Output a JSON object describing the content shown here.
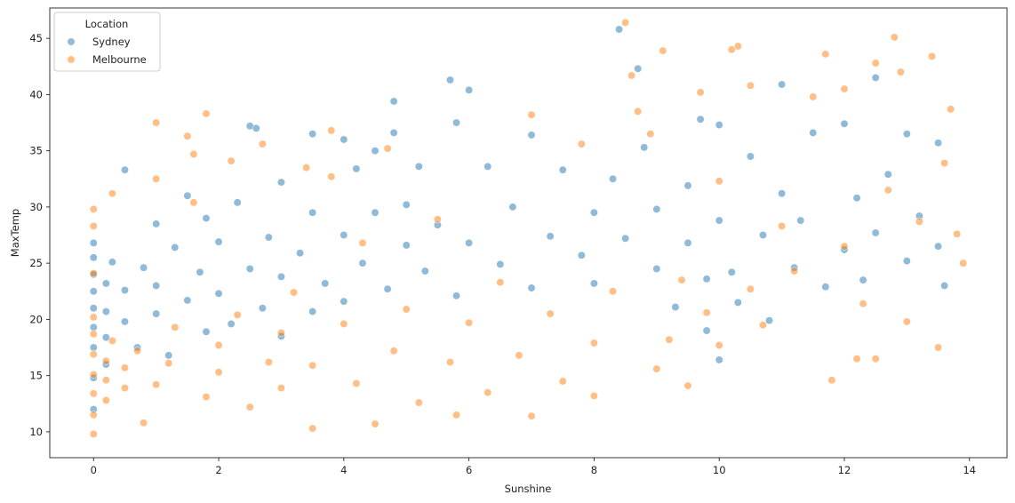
{
  "chart_data": {
    "type": "scatter",
    "xlabel": "Sunshine",
    "ylabel": "MaxTemp",
    "xlim": [
      -0.7,
      14.6
    ],
    "ylim": [
      7.7,
      47.7
    ],
    "xticks": [
      0,
      2,
      4,
      6,
      8,
      10,
      12,
      14
    ],
    "yticks": [
      10,
      15,
      20,
      25,
      30,
      35,
      40,
      45
    ],
    "grid": false,
    "legend": {
      "title": "Location",
      "placement": "top-left"
    },
    "series": [
      {
        "name": "Sydney",
        "color": "#1f77b4",
        "points": [
          [
            0,
            12
          ],
          [
            0,
            14.8
          ],
          [
            0,
            17.5
          ],
          [
            0,
            19.3
          ],
          [
            0,
            21
          ],
          [
            0,
            22.5
          ],
          [
            0,
            24
          ],
          [
            0,
            25.5
          ],
          [
            0,
            26.8
          ],
          [
            0.2,
            16
          ],
          [
            0.2,
            18.4
          ],
          [
            0.2,
            20.7
          ],
          [
            0.2,
            23.2
          ],
          [
            0.3,
            25.1
          ],
          [
            0.5,
            19.8
          ],
          [
            0.5,
            22.6
          ],
          [
            0.5,
            33.3
          ],
          [
            0.7,
            17.5
          ],
          [
            0.8,
            24.6
          ],
          [
            1.0,
            20.5
          ],
          [
            1.0,
            23
          ],
          [
            1.0,
            28.5
          ],
          [
            1.2,
            16.8
          ],
          [
            1.3,
            26.4
          ],
          [
            1.5,
            21.7
          ],
          [
            1.5,
            31
          ],
          [
            1.7,
            24.2
          ],
          [
            1.8,
            18.9
          ],
          [
            1.8,
            29
          ],
          [
            2.0,
            22.3
          ],
          [
            2.0,
            26.9
          ],
          [
            2.2,
            19.6
          ],
          [
            2.3,
            30.4
          ],
          [
            2.5,
            24.5
          ],
          [
            2.5,
            37.2
          ],
          [
            2.6,
            37
          ],
          [
            2.7,
            21
          ],
          [
            2.8,
            27.3
          ],
          [
            3.0,
            18.5
          ],
          [
            3.0,
            23.8
          ],
          [
            3.0,
            32.2
          ],
          [
            3.3,
            25.9
          ],
          [
            3.5,
            20.7
          ],
          [
            3.5,
            29.5
          ],
          [
            3.5,
            36.5
          ],
          [
            3.7,
            23.2
          ],
          [
            4.0,
            27.5
          ],
          [
            4.0,
            36
          ],
          [
            4.0,
            21.6
          ],
          [
            4.2,
            33.4
          ],
          [
            4.3,
            25
          ],
          [
            4.5,
            29.5
          ],
          [
            4.5,
            35
          ],
          [
            4.7,
            22.7
          ],
          [
            4.8,
            39.4
          ],
          [
            4.8,
            36.6
          ],
          [
            5.0,
            26.6
          ],
          [
            5.0,
            30.2
          ],
          [
            5.2,
            33.6
          ],
          [
            5.3,
            24.3
          ],
          [
            5.5,
            28.4
          ],
          [
            5.7,
            41.3
          ],
          [
            5.8,
            37.5
          ],
          [
            5.8,
            22.1
          ],
          [
            6.0,
            40.4
          ],
          [
            6.0,
            26.8
          ],
          [
            6.3,
            33.6
          ],
          [
            6.5,
            24.9
          ],
          [
            6.7,
            30
          ],
          [
            7.0,
            36.4
          ],
          [
            7.0,
            22.8
          ],
          [
            7.3,
            27.4
          ],
          [
            7.5,
            33.3
          ],
          [
            7.8,
            25.7
          ],
          [
            8.0,
            29.5
          ],
          [
            8.0,
            23.2
          ],
          [
            8.3,
            32.5
          ],
          [
            8.4,
            45.8
          ],
          [
            8.5,
            27.2
          ],
          [
            8.7,
            42.3
          ],
          [
            8.8,
            35.3
          ],
          [
            9.0,
            24.5
          ],
          [
            9.0,
            29.8
          ],
          [
            9.3,
            21.1
          ],
          [
            9.5,
            31.9
          ],
          [
            9.5,
            26.8
          ],
          [
            9.7,
            37.8
          ],
          [
            9.8,
            19
          ],
          [
            9.8,
            23.6
          ],
          [
            10.0,
            37.3
          ],
          [
            10.0,
            28.8
          ],
          [
            10.0,
            16.4
          ],
          [
            10.2,
            24.2
          ],
          [
            10.3,
            21.5
          ],
          [
            10.5,
            34.5
          ],
          [
            10.7,
            27.5
          ],
          [
            10.8,
            19.9
          ],
          [
            11.0,
            31.2
          ],
          [
            11.0,
            40.9
          ],
          [
            11.2,
            24.6
          ],
          [
            11.3,
            28.8
          ],
          [
            11.5,
            36.6
          ],
          [
            11.7,
            22.9
          ],
          [
            12.0,
            26.2
          ],
          [
            12.0,
            37.4
          ],
          [
            12.2,
            30.8
          ],
          [
            12.3,
            23.5
          ],
          [
            12.5,
            41.5
          ],
          [
            12.5,
            27.7
          ],
          [
            12.7,
            32.9
          ],
          [
            13.0,
            25.2
          ],
          [
            13.0,
            36.5
          ],
          [
            13.2,
            29.2
          ],
          [
            13.5,
            26.5
          ],
          [
            13.5,
            35.7
          ],
          [
            13.6,
            23
          ]
        ]
      },
      {
        "name": "Melbourne",
        "color": "#ff7f0e",
        "points": [
          [
            0,
            9.8
          ],
          [
            0,
            11.5
          ],
          [
            0,
            13.4
          ],
          [
            0,
            15.1
          ],
          [
            0,
            16.9
          ],
          [
            0,
            18.7
          ],
          [
            0,
            20.2
          ],
          [
            0,
            24.1
          ],
          [
            0,
            28.3
          ],
          [
            0,
            29.8
          ],
          [
            0.2,
            12.8
          ],
          [
            0.2,
            14.6
          ],
          [
            0.2,
            16.3
          ],
          [
            0.3,
            18.1
          ],
          [
            0.3,
            31.2
          ],
          [
            0.5,
            13.9
          ],
          [
            0.5,
            15.7
          ],
          [
            0.7,
            17.2
          ],
          [
            0.8,
            10.8
          ],
          [
            1.0,
            37.5
          ],
          [
            1.0,
            32.5
          ],
          [
            1.0,
            14.2
          ],
          [
            1.2,
            16.1
          ],
          [
            1.3,
            19.3
          ],
          [
            1.5,
            36.3
          ],
          [
            1.6,
            34.7
          ],
          [
            1.6,
            30.4
          ],
          [
            1.8,
            38.3
          ],
          [
            1.8,
            13.1
          ],
          [
            2.0,
            15.3
          ],
          [
            2.0,
            17.7
          ],
          [
            2.2,
            34.1
          ],
          [
            2.3,
            20.4
          ],
          [
            2.5,
            12.2
          ],
          [
            2.7,
            35.6
          ],
          [
            2.8,
            16.2
          ],
          [
            3.0,
            18.8
          ],
          [
            3.0,
            13.9
          ],
          [
            3.2,
            22.4
          ],
          [
            3.4,
            33.5
          ],
          [
            3.5,
            10.3
          ],
          [
            3.5,
            15.9
          ],
          [
            3.8,
            36.8
          ],
          [
            3.8,
            32.7
          ],
          [
            4.0,
            19.6
          ],
          [
            4.2,
            14.3
          ],
          [
            4.3,
            26.8
          ],
          [
            4.5,
            10.7
          ],
          [
            4.7,
            35.2
          ],
          [
            4.8,
            17.2
          ],
          [
            5.0,
            20.9
          ],
          [
            5.2,
            12.6
          ],
          [
            5.5,
            28.9
          ],
          [
            5.7,
            16.2
          ],
          [
            5.8,
            11.5
          ],
          [
            6.0,
            19.7
          ],
          [
            6.3,
            13.5
          ],
          [
            6.5,
            23.3
          ],
          [
            6.8,
            16.8
          ],
          [
            7.0,
            38.2
          ],
          [
            7.0,
            11.4
          ],
          [
            7.3,
            20.5
          ],
          [
            7.5,
            14.5
          ],
          [
            7.8,
            35.6
          ],
          [
            8.0,
            17.9
          ],
          [
            8.0,
            13.2
          ],
          [
            8.3,
            22.5
          ],
          [
            8.5,
            46.4
          ],
          [
            8.6,
            41.7
          ],
          [
            8.7,
            38.5
          ],
          [
            8.9,
            36.5
          ],
          [
            9.0,
            15.6
          ],
          [
            9.1,
            43.9
          ],
          [
            9.2,
            18.2
          ],
          [
            9.4,
            23.5
          ],
          [
            9.5,
            14.1
          ],
          [
            9.7,
            40.2
          ],
          [
            9.8,
            20.6
          ],
          [
            10.0,
            32.3
          ],
          [
            10.0,
            17.7
          ],
          [
            10.2,
            44
          ],
          [
            10.3,
            44.3
          ],
          [
            10.5,
            22.7
          ],
          [
            10.5,
            40.8
          ],
          [
            10.7,
            19.5
          ],
          [
            11.0,
            28.3
          ],
          [
            11.2,
            24.3
          ],
          [
            11.5,
            39.8
          ],
          [
            11.7,
            43.6
          ],
          [
            11.8,
            14.6
          ],
          [
            12.0,
            40.5
          ],
          [
            12.0,
            26.5
          ],
          [
            12.2,
            16.5
          ],
          [
            12.3,
            21.4
          ],
          [
            12.5,
            42.8
          ],
          [
            12.5,
            16.5
          ],
          [
            12.7,
            31.5
          ],
          [
            12.8,
            45.1
          ],
          [
            12.9,
            42
          ],
          [
            13.0,
            19.8
          ],
          [
            13.2,
            28.7
          ],
          [
            13.4,
            43.4
          ],
          [
            13.5,
            17.5
          ],
          [
            13.6,
            33.9
          ],
          [
            13.7,
            38.7
          ],
          [
            13.8,
            27.6
          ],
          [
            13.9,
            25
          ]
        ]
      }
    ]
  }
}
